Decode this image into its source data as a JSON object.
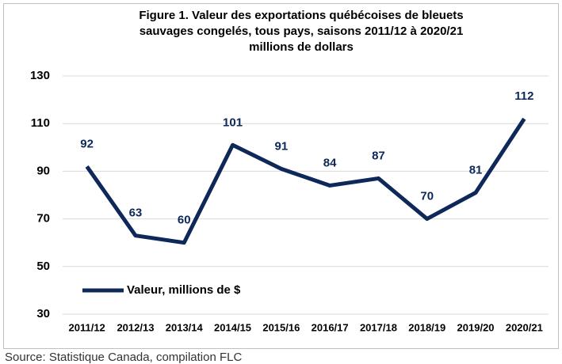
{
  "chart_data": {
    "type": "line",
    "title": [
      "Figure 1. Valeur des exportations québécoises de bleuets",
      "sauvages congelés, tous pays, saisons 2011/12 à 2020/21",
      "millions de dollars"
    ],
    "categories": [
      "2011/12",
      "2012/13",
      "2013/14",
      "2014/15",
      "2015/16",
      "2016/17",
      "2017/18",
      "2018/19",
      "2019/20",
      "2020/21"
    ],
    "series": [
      {
        "name": "Valeur, millions de $",
        "color": "#0d2859",
        "values": [
          92,
          63,
          60,
          101,
          91,
          84,
          87,
          70,
          81,
          112
        ]
      }
    ],
    "ylim": [
      30,
      130
    ],
    "yticks": [
      30,
      50,
      70,
      90,
      110,
      130
    ],
    "grid": true,
    "legend": "lower-left",
    "source": "Source: Statistique Canada, compilation FLC"
  }
}
